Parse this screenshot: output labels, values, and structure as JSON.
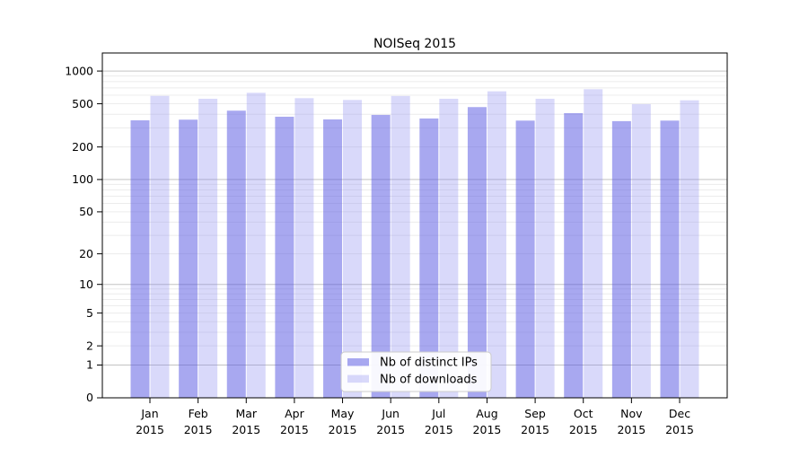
{
  "figure": {
    "background": "#ffffff"
  },
  "chart_data": {
    "type": "bar",
    "title": "NOISeq 2015",
    "x_categories": [
      "Jan",
      "Feb",
      "Mar",
      "Apr",
      "May",
      "Jun",
      "Jul",
      "Aug",
      "Sep",
      "Oct",
      "Nov",
      "Dec"
    ],
    "x_year": "2015",
    "series": [
      {
        "name": "Nb of distinct IPs",
        "color": "#a8a8f0",
        "fill": "rgba(81,81,225,0.5)",
        "values": [
          352,
          357,
          432,
          380,
          359,
          395,
          366,
          466,
          350,
          410,
          346,
          350
        ]
      },
      {
        "name": "Nb of downloads",
        "color": "#d9d9fa",
        "fill": "rgba(128,128,238,0.3)",
        "values": [
          591,
          556,
          631,
          563,
          542,
          590,
          556,
          651,
          556,
          681,
          496,
          538
        ]
      }
    ],
    "yscale": "log1p",
    "y_ticks": [
      0,
      1,
      2,
      5,
      10,
      20,
      50,
      100,
      200,
      500,
      1000
    ],
    "ylim": [
      0,
      1465
    ],
    "grid": {
      "on": true,
      "major_at": [
        1,
        10,
        100,
        1000
      ],
      "major_color": "#c3c3c3",
      "minor_color": "#ececec"
    },
    "legend": {
      "position": "bottom-center",
      "border_color": "#cccccc",
      "background": "#ffffff",
      "labels": [
        "Nb of distinct IPs",
        "Nb of downloads"
      ]
    }
  }
}
